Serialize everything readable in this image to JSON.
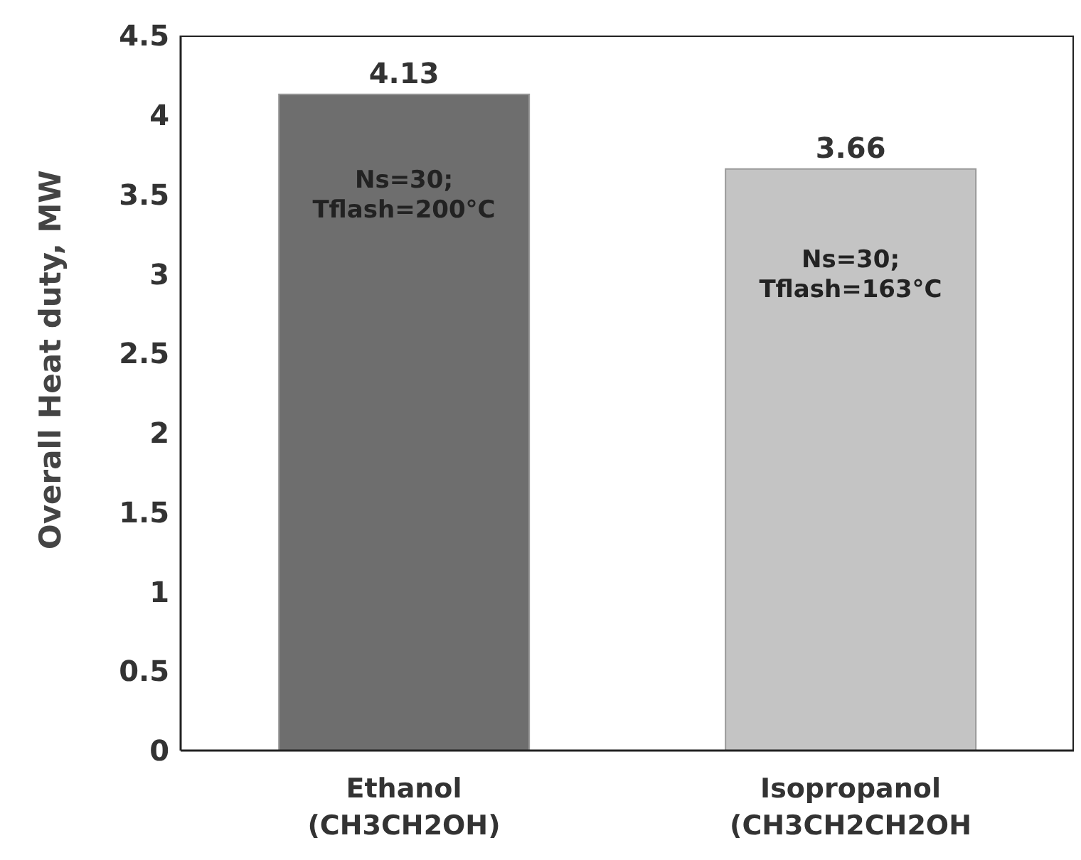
{
  "chart_data": {
    "type": "bar",
    "ylabel": "Overall  Heat duty, MW",
    "categories": [
      "Ethanol\n(CH3CH2OH)",
      "Isopropanol\n(CH3CH2CH2OH"
    ],
    "values": [
      4.13,
      3.66
    ],
    "colors": [
      "#6e6e6e",
      "#c4c4c4"
    ],
    "ylim": [
      0,
      4.5
    ],
    "yticks": [
      0,
      0.5,
      1,
      1.5,
      2,
      2.5,
      3,
      3.5,
      4,
      4.5
    ],
    "grid": false,
    "data_labels": true,
    "annotations": [
      "Ns=30;\nTflash=200°C",
      "Ns=30;\nTflash=163°C"
    ]
  }
}
